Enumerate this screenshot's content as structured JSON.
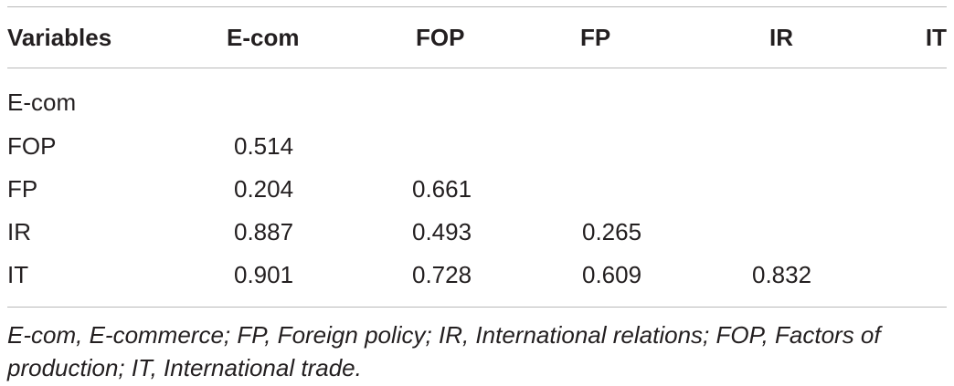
{
  "table": {
    "headers": [
      "Variables",
      "E-com",
      "FOP",
      "FP",
      "IR",
      "IT"
    ],
    "rows": [
      {
        "label": "E-com",
        "values": [
          "",
          "",
          "",
          "",
          ""
        ]
      },
      {
        "label": "FOP",
        "values": [
          "0.514",
          "",
          "",
          "",
          ""
        ]
      },
      {
        "label": "FP",
        "values": [
          "0.204",
          "0.661",
          "",
          "",
          ""
        ]
      },
      {
        "label": "IR",
        "values": [
          "0.887",
          "0.493",
          "0.265",
          "",
          ""
        ]
      },
      {
        "label": "IT",
        "values": [
          "0.901",
          "0.728",
          "0.609",
          "0.832",
          ""
        ]
      }
    ]
  },
  "footnote": "E-com, E-commerce; FP, Foreign policy; IR, International relations; FOP, Factors of production; IT, International trade."
}
